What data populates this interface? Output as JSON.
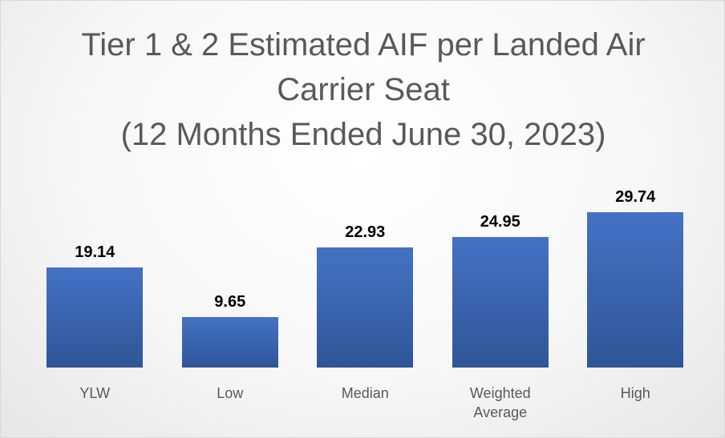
{
  "chart_data": {
    "type": "bar",
    "title": "Tier 1 & 2 Estimated AIF per Landed Air Carrier Seat",
    "subtitle": "(12 Months Ended June 30, 2023)",
    "categories": [
      "YLW",
      "Low",
      "Median",
      "Weighted Average",
      "High"
    ],
    "values": [
      19.14,
      9.65,
      22.93,
      24.95,
      29.74
    ],
    "color": "#4472c4"
  }
}
